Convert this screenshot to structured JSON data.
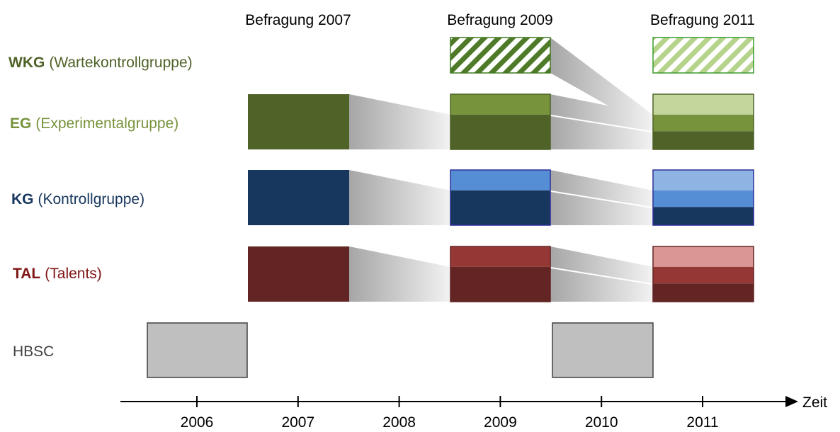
{
  "surveys": [
    "Befragung 2007",
    "Befragung 2009",
    "Befragung 2011"
  ],
  "groups": [
    {
      "abbr": "WKG",
      "name": "(Wartekontrollgruppe)"
    },
    {
      "abbr": "EG",
      "name": "(Experimentalgruppe)"
    },
    {
      "abbr": "KG",
      "name": "(Kontrollgruppe)"
    },
    {
      "abbr": "TAL",
      "name": "(Talents)"
    }
  ],
  "hbsc": "HBSC",
  "years": [
    "2006",
    "2007",
    "2008",
    "2009",
    "2010",
    "2011"
  ],
  "axis_label": "Zeit"
}
